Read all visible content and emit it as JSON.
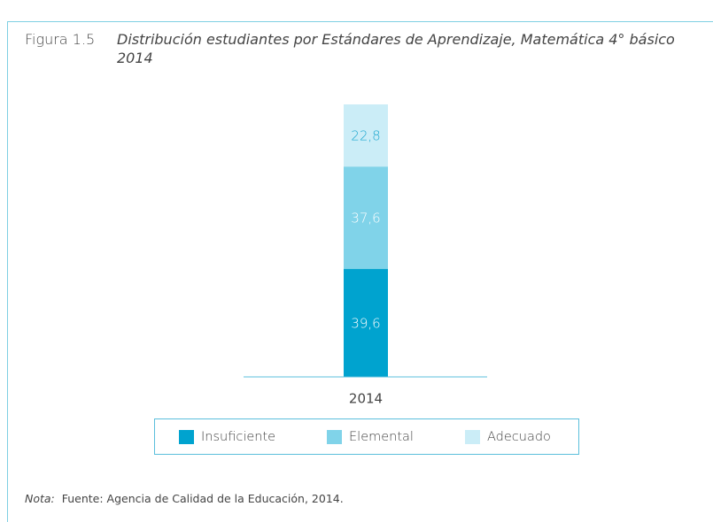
{
  "chart_data": {
    "type": "stacked_bar",
    "figure_label": "Figura 1.5",
    "title": "Distribución estudiantes por Estándares de Aprendizaje, Matemática 4° básico 2014",
    "categories": [
      "2014"
    ],
    "series": [
      {
        "name": "Insuficiente",
        "color": "#00a3cf",
        "label_color": "#ffffff",
        "values": [
          39.6
        ],
        "value_labels": [
          "39,6"
        ]
      },
      {
        "name": "Elemental",
        "color": "#80d3e9",
        "label_color": "#ffffff",
        "values": [
          37.6
        ],
        "value_labels": [
          "37,6"
        ]
      },
      {
        "name": "Adecuado",
        "color": "#cbedf7",
        "label_color": "#1aa6cf",
        "values": [
          22.8
        ],
        "value_labels": [
          "22,8"
        ]
      }
    ],
    "note_label": "Nota:",
    "note": "Fuente: Agencia de Calidad de la Educación, 2014."
  }
}
